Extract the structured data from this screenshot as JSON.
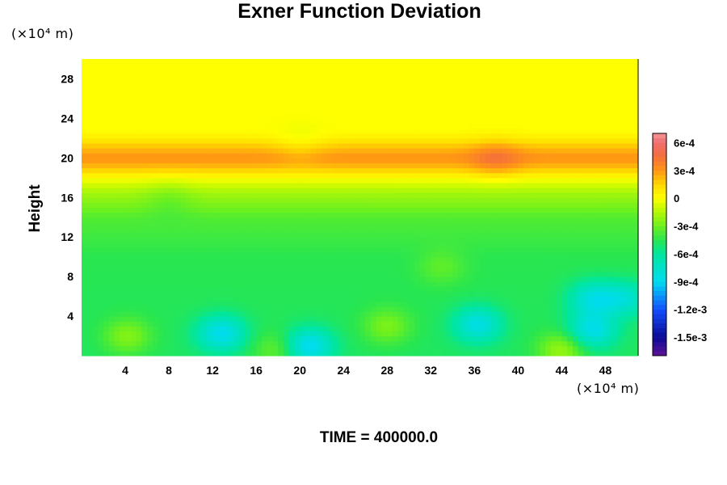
{
  "chart_data": {
    "type": "heatmap",
    "title": "Exner Function Deviation",
    "ylabel": "Height",
    "xlabel": "",
    "y_unit": "(×10⁴ m)",
    "x_unit": "(×10⁴ m)",
    "time_label": "TIME = 400000.0",
    "xlim": [
      0,
      51
    ],
    "ylim": [
      0,
      30
    ],
    "x_ticks": [
      4,
      8,
      12,
      16,
      20,
      24,
      28,
      32,
      36,
      40,
      44,
      48
    ],
    "y_ticks": [
      4,
      8,
      12,
      16,
      20,
      24,
      28
    ],
    "colorbar": {
      "range": [
        -0.0017,
        0.0007
      ],
      "ticks": [
        {
          "value": 0.0006,
          "label": "6e-4"
        },
        {
          "value": 0.0003,
          "label": "3e-4"
        },
        {
          "value": 0,
          "label": "0"
        },
        {
          "value": -0.0003,
          "label": "-3e-4"
        },
        {
          "value": -0.0006,
          "label": "-6e-4"
        },
        {
          "value": -0.0009,
          "label": "-9e-4"
        },
        {
          "value": -0.0012,
          "label": "-1.2e-3"
        },
        {
          "value": -0.0015,
          "label": "-1.5e-3"
        }
      ]
    },
    "field": {
      "base_profile": [
        {
          "height": 0,
          "value": -0.00048
        },
        {
          "height": 10,
          "value": -0.00045
        },
        {
          "height": 14,
          "value": -0.00036
        },
        {
          "height": 16.5,
          "value": -0.00018
        },
        {
          "height": 18,
          "value": 0.0
        },
        {
          "height": 19,
          "value": 0.0002
        },
        {
          "height": 20,
          "value": 0.00032
        },
        {
          "height": 21,
          "value": 0.00022
        },
        {
          "height": 22,
          "value": 6e-05
        },
        {
          "height": 23,
          "value": 0.0
        },
        {
          "height": 30,
          "value": 0.0
        }
      ],
      "anomalies": [
        {
          "x": 12.8,
          "y": 2.3,
          "value": -0.00042
        },
        {
          "x": 20.8,
          "y": 1.0,
          "value": -0.00045
        },
        {
          "x": 36.3,
          "y": 3.2,
          "value": -0.00038
        },
        {
          "x": 46.8,
          "y": 2.6,
          "value": -0.0004
        },
        {
          "x": 46.8,
          "y": 5.8,
          "value": -0.00035
        },
        {
          "x": 49.8,
          "y": 5.8,
          "value": -0.0003
        },
        {
          "x": 4.2,
          "y": 2.0,
          "value": 0.00022
        },
        {
          "x": 28.0,
          "y": 3.0,
          "value": 0.0002
        },
        {
          "x": 44.0,
          "y": 0.6,
          "value": 0.00028
        },
        {
          "x": 18.0,
          "y": 0.6,
          "value": 0.00018
        },
        {
          "x": 38.0,
          "y": 20.0,
          "value": 0.00014
        },
        {
          "x": 20.0,
          "y": 21.2,
          "value": -8e-05
        },
        {
          "x": 33.0,
          "y": 9.0,
          "value": 0.00012
        },
        {
          "x": 8.0,
          "y": 16.0,
          "value": -8e-05
        }
      ]
    }
  }
}
